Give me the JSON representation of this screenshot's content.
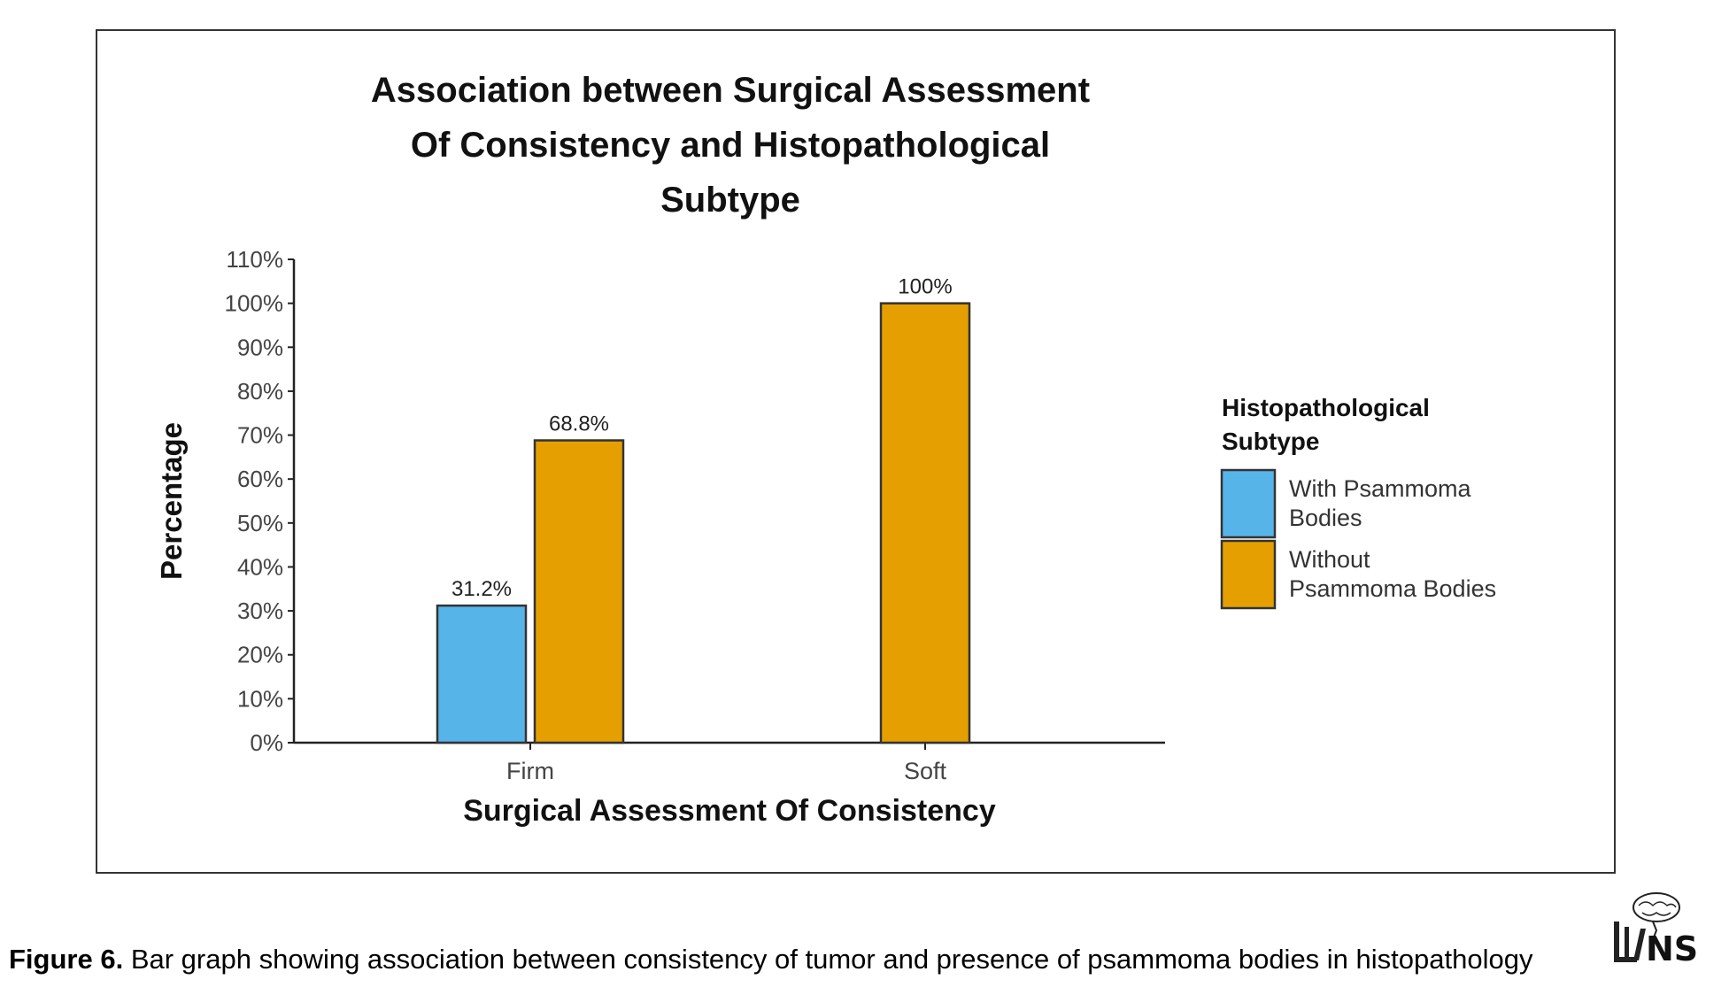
{
  "caption": {
    "label": "Figure 6.",
    "text": "Bar graph showing association between consistency of tumor and presence of psammoma bodies in histopathology"
  },
  "logo": {
    "icon": "brain-logo-icon",
    "text": "NS"
  },
  "chart_data": {
    "type": "bar",
    "title_lines": [
      "Association between Surgical Assessment",
      "Of Consistency and Histopathological",
      "Subtype"
    ],
    "xlabel": "Surgical Assessment Of Consistency",
    "ylabel": "Percentage",
    "categories": [
      "Firm",
      "Soft"
    ],
    "ylim": [
      0,
      110
    ],
    "yticks": [
      0,
      10,
      20,
      30,
      40,
      50,
      60,
      70,
      80,
      90,
      100,
      110
    ],
    "ytick_labels": [
      "0%",
      "10%",
      "20%",
      "30%",
      "40%",
      "50%",
      "60%",
      "70%",
      "80%",
      "90%",
      "100%",
      "110%"
    ],
    "grid": false,
    "legend": {
      "title_lines": [
        "Histopathological",
        "Subtype"
      ],
      "position": "right",
      "entries": [
        {
          "label_lines": [
            "With Psammoma",
            "Bodies"
          ],
          "color": "#56B4E9"
        },
        {
          "label_lines": [
            "Without",
            "Psammoma Bodies"
          ],
          "color": "#E69F00"
        }
      ]
    },
    "bars": [
      {
        "category": "Firm",
        "series": "With Psammoma Bodies",
        "value": 31.2,
        "label": "31.2%",
        "color": "#56B4E9"
      },
      {
        "category": "Firm",
        "series": "Without Psammoma Bodies",
        "value": 68.8,
        "label": "68.8%",
        "color": "#E69F00"
      },
      {
        "category": "Soft",
        "series": "Without Psammoma Bodies",
        "value": 100,
        "label": "100%",
        "color": "#E69F00"
      }
    ]
  }
}
